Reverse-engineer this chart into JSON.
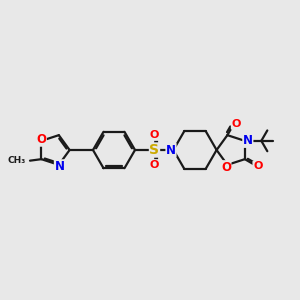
{
  "bg_color": "#e8e8e8",
  "bond_color": "#1a1a1a",
  "bond_width": 1.6,
  "atom_colors": {
    "O": "#ff0000",
    "N": "#0000ee",
    "S": "#ccaa00",
    "C": "#1a1a1a"
  },
  "font_size_atom": 8.5,
  "xlim": [
    0,
    10
  ],
  "ylim": [
    0,
    10
  ]
}
